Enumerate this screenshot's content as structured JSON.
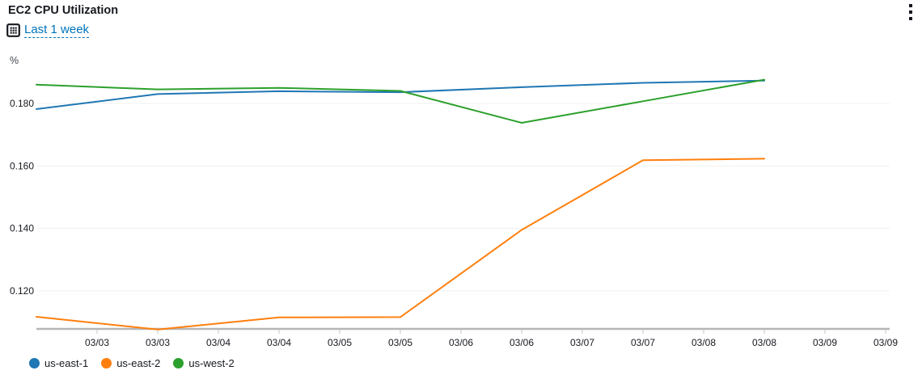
{
  "widget": {
    "title": "EC2 CPU Utilization",
    "time_range_label": "Last 1 week",
    "icons": {
      "time_range": "calendar-icon",
      "menu": "vertical-ellipsis-icon"
    }
  },
  "colors": {
    "link": "#0073bb",
    "title_text": "#16191f",
    "axis_line": "#b6b6b6",
    "gridline": "#f0f1f1",
    "tick_mark": "#c4c4c4"
  },
  "chart_data": {
    "type": "line",
    "title": "EC2 CPU Utilization",
    "unit_label": "%",
    "xlabel": "",
    "ylabel": "%",
    "grid": true,
    "legend_position": "bottom",
    "ylim": [
      0.108,
      0.191
    ],
    "y_ticks": [
      0.18,
      0.16,
      0.14,
      0.12
    ],
    "y_tick_labels": [
      "0.180",
      "0.160",
      "0.140",
      "0.120"
    ],
    "x_tick_labels": [
      "03/03",
      "03/03",
      "03/04",
      "03/04",
      "03/05",
      "03/05",
      "03/06",
      "03/06",
      "03/07",
      "03/07",
      "03/08",
      "03/08",
      "03/09",
      "03/09"
    ],
    "x_tick_indices": [
      -1,
      1,
      3,
      5,
      7,
      9,
      11
    ],
    "series": [
      {
        "name": "us-east-1",
        "color": "#1f77b4",
        "values": [
          0.1782,
          0.183,
          0.1839,
          0.1836,
          0.1852,
          0.1866,
          0.1873
        ]
      },
      {
        "name": "us-east-2",
        "color": "#ff7f0e",
        "values": [
          0.1117,
          0.1076,
          0.1115,
          0.1116,
          0.1395,
          0.1618,
          0.1623
        ]
      },
      {
        "name": "us-west-2",
        "color": "#2ca02c",
        "values": [
          0.186,
          0.1845,
          0.185,
          0.184,
          0.1738,
          0.1807,
          0.1876
        ]
      }
    ],
    "legend": [
      "us-east-1",
      "us-east-2",
      "us-west-2"
    ]
  }
}
